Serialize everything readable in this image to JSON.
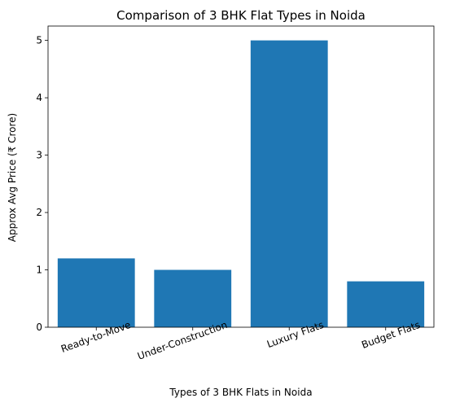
{
  "chart_data": {
    "type": "bar",
    "title": "Comparison of 3 BHK Flat Types in Noida",
    "xlabel": "Types of 3 BHK Flats in Noida",
    "ylabel": "Approx Avg Price (₹ Crore)",
    "categories": [
      "Ready-to-Move",
      "Under-Construction",
      "Luxury Flats",
      "Budget Flats"
    ],
    "values": [
      1.2,
      1.0,
      5.0,
      0.8
    ],
    "ylim": [
      0,
      5.25
    ],
    "yticks": [
      0,
      1,
      2,
      3,
      4,
      5
    ],
    "bar_color": "#1f77b4",
    "grid": false,
    "legend": "none"
  }
}
